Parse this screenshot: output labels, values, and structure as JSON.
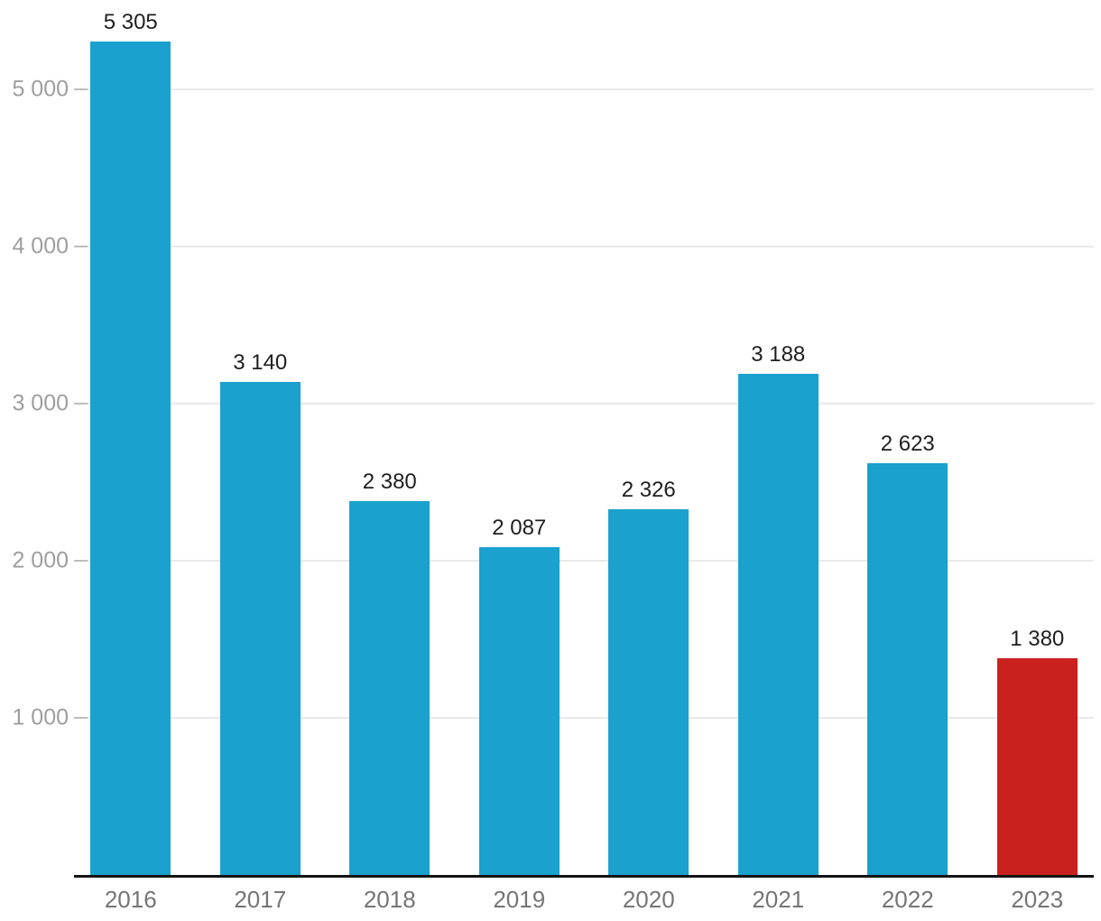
{
  "chart_data": {
    "type": "bar",
    "title": "",
    "categories": [
      "2016",
      "2017",
      "2018",
      "2019",
      "2020",
      "2021",
      "2022",
      "2023"
    ],
    "values": [
      5305,
      3140,
      2380,
      2087,
      2326,
      3188,
      2623,
      1380
    ],
    "value_labels": [
      "5 305",
      "3 140",
      "2 380",
      "2 087",
      "2 326",
      "3 188",
      "2 623",
      "1 380"
    ],
    "y_ticks": [
      {
        "value": 1000,
        "label": "1 000"
      },
      {
        "value": 2000,
        "label": "2 000"
      },
      {
        "value": 3000,
        "label": "3 000"
      },
      {
        "value": 4000,
        "label": "4 000"
      },
      {
        "value": 5000,
        "label": "5 000"
      }
    ],
    "ylim": [
      0,
      5570
    ],
    "grid": true,
    "legend": "none",
    "highlight_index": 7,
    "colors": {
      "bar": "#1AA1CD",
      "bar_highlight": "#C9211E",
      "gridline": "#E9E9E9",
      "tick": "#BDBDBD",
      "axis_line": "#141414",
      "value_label": "#1F1F1F",
      "x_label": "#757575",
      "y_label": "#9E9E9E",
      "background": "#FFFFFF"
    }
  }
}
